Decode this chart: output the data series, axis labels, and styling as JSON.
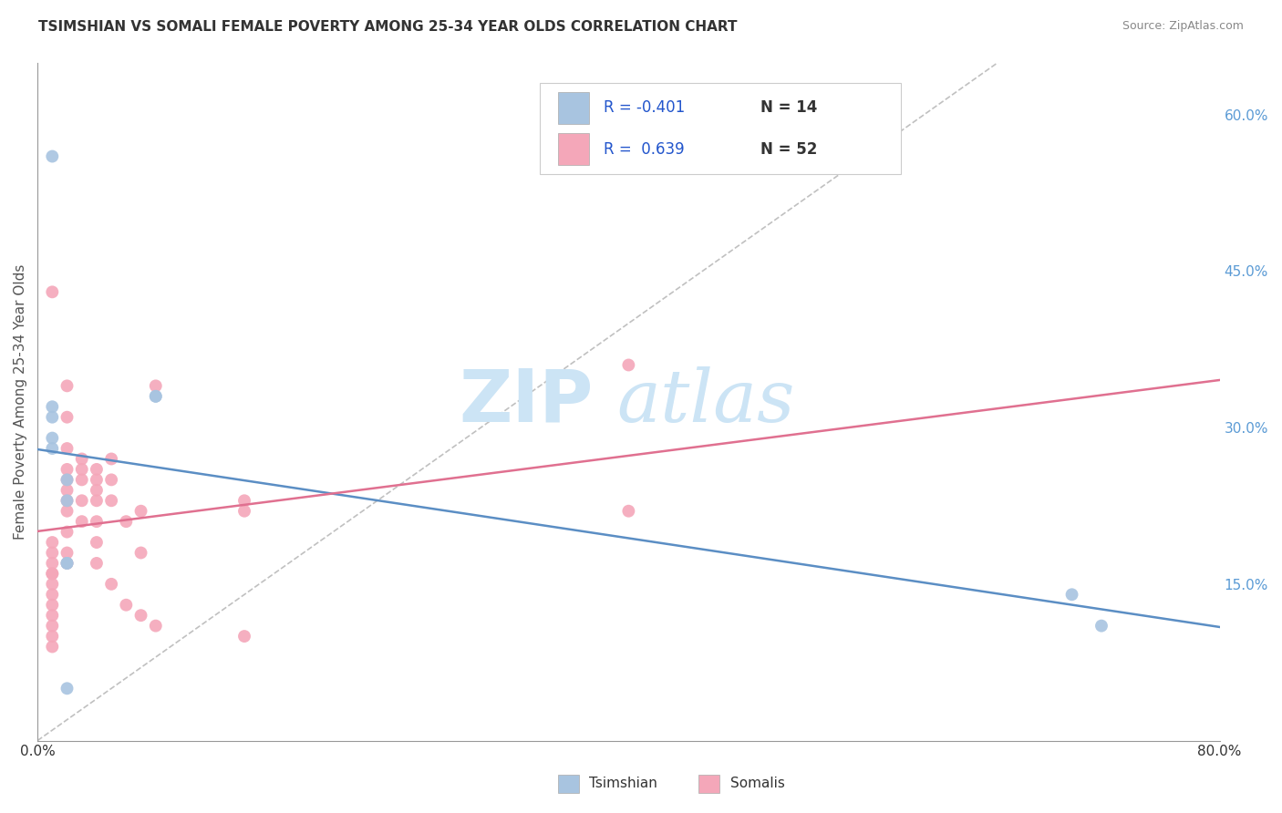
{
  "title": "TSIMSHIAN VS SOMALI FEMALE POVERTY AMONG 25-34 YEAR OLDS CORRELATION CHART",
  "source": "Source: ZipAtlas.com",
  "ylabel": "Female Poverty Among 25-34 Year Olds",
  "xlim": [
    0.0,
    0.8
  ],
  "ylim": [
    0.0,
    0.65
  ],
  "xticks": [
    0.0,
    0.1,
    0.2,
    0.3,
    0.4,
    0.5,
    0.6,
    0.7,
    0.8
  ],
  "xticklabels": [
    "0.0%",
    "",
    "",
    "",
    "",
    "",
    "",
    "",
    "80.0%"
  ],
  "yticks_right": [
    0.15,
    0.3,
    0.45,
    0.6
  ],
  "ytick_right_labels": [
    "15.0%",
    "30.0%",
    "45.0%",
    "60.0%"
  ],
  "tsimshian_color": "#a8c4e0",
  "somali_color": "#f4a7b9",
  "tsimshian_line_color": "#5b8ec4",
  "somali_line_color": "#e07090",
  "diagonal_color": "#c0c0c0",
  "legend_r_tsimshian": "-0.401",
  "legend_n_tsimshian": "14",
  "legend_r_somali": "0.639",
  "legend_n_somali": "52",
  "tsimshian_x": [
    0.01,
    0.01,
    0.01,
    0.01,
    0.01,
    0.02,
    0.02,
    0.02,
    0.02,
    0.08,
    0.08,
    0.7,
    0.72,
    0.02
  ],
  "tsimshian_y": [
    0.56,
    0.32,
    0.31,
    0.29,
    0.28,
    0.25,
    0.23,
    0.17,
    0.17,
    0.33,
    0.33,
    0.14,
    0.11,
    0.05
  ],
  "somali_x": [
    0.01,
    0.01,
    0.01,
    0.01,
    0.01,
    0.01,
    0.01,
    0.01,
    0.01,
    0.01,
    0.01,
    0.01,
    0.01,
    0.02,
    0.02,
    0.02,
    0.02,
    0.02,
    0.02,
    0.02,
    0.02,
    0.02,
    0.02,
    0.02,
    0.03,
    0.03,
    0.03,
    0.03,
    0.03,
    0.04,
    0.04,
    0.04,
    0.04,
    0.04,
    0.04,
    0.04,
    0.05,
    0.05,
    0.05,
    0.05,
    0.06,
    0.06,
    0.07,
    0.07,
    0.07,
    0.08,
    0.08,
    0.14,
    0.14,
    0.14,
    0.4,
    0.4
  ],
  "somali_y": [
    0.43,
    0.19,
    0.18,
    0.17,
    0.16,
    0.16,
    0.15,
    0.14,
    0.13,
    0.12,
    0.11,
    0.1,
    0.09,
    0.34,
    0.31,
    0.28,
    0.26,
    0.25,
    0.24,
    0.23,
    0.22,
    0.2,
    0.18,
    0.17,
    0.27,
    0.26,
    0.25,
    0.23,
    0.21,
    0.26,
    0.25,
    0.24,
    0.23,
    0.21,
    0.19,
    0.17,
    0.27,
    0.25,
    0.23,
    0.15,
    0.21,
    0.13,
    0.22,
    0.18,
    0.12,
    0.34,
    0.11,
    0.23,
    0.22,
    0.1,
    0.36,
    0.22
  ],
  "background_color": "#ffffff",
  "grid_color": "#cccccc",
  "watermark_zip": "ZIP",
  "watermark_atlas": "atlas",
  "watermark_color": "#cce4f5",
  "watermark_fontsize": 58
}
